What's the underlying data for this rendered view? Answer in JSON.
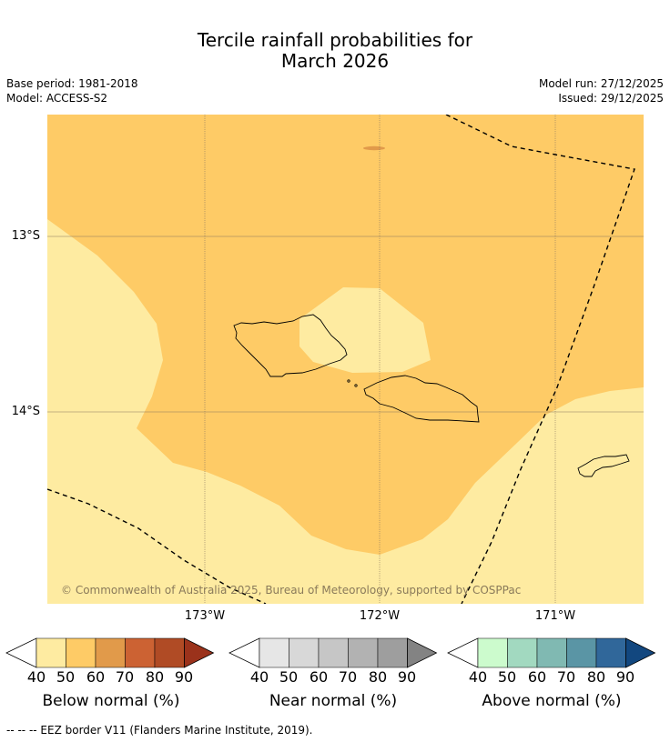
{
  "title_line1": "Tercile rainfall probabilities for",
  "title_line2": "March 2026",
  "base_period": "Base period: 1981-2018",
  "model": "Model: ACCESS-S2",
  "model_run": "Model run: 27/12/2025",
  "issued": "Issued: 29/12/2025",
  "latitude_labels": [
    "13°S",
    "14°S"
  ],
  "longitude_labels": [
    "173°W",
    "172°W",
    "171°W"
  ],
  "copyright": "© Commonwealth of Australia 2025, Bureau of Meteorology, supported by COSPPac",
  "colorbars": [
    {
      "label": "Below normal (%)",
      "ticks": [
        "40",
        "50",
        "60",
        "70",
        "80",
        "90"
      ],
      "colors": [
        "#ffffff",
        "#feeba1",
        "#fecb66",
        "#e19a4a",
        "#cc6233",
        "#b04b25",
        "#9b321b"
      ]
    },
    {
      "label": "Near normal (%)",
      "ticks": [
        "40",
        "50",
        "60",
        "70",
        "80",
        "90"
      ],
      "colors": [
        "#ffffff",
        "#e6e6e6",
        "#d8d8d8",
        "#c6c6c6",
        "#b2b2b2",
        "#9e9e9e",
        "#838383"
      ]
    },
    {
      "label": "Above normal (%)",
      "ticks": [
        "40",
        "50",
        "60",
        "70",
        "80",
        "90"
      ],
      "colors": [
        "#ffffff",
        "#ccfbcd",
        "#a2d9c0",
        "#80b9b2",
        "#5a95a5",
        "#30679a",
        "#12477f"
      ]
    }
  ],
  "legend_note": "-- -- -- EEZ border V11 (Flanders Marine Institute, 2019).",
  "map_colors": {
    "below_50_60": "#fecb66",
    "below_40_50": "#feeba1",
    "below_60_70": "#e19a4a"
  }
}
